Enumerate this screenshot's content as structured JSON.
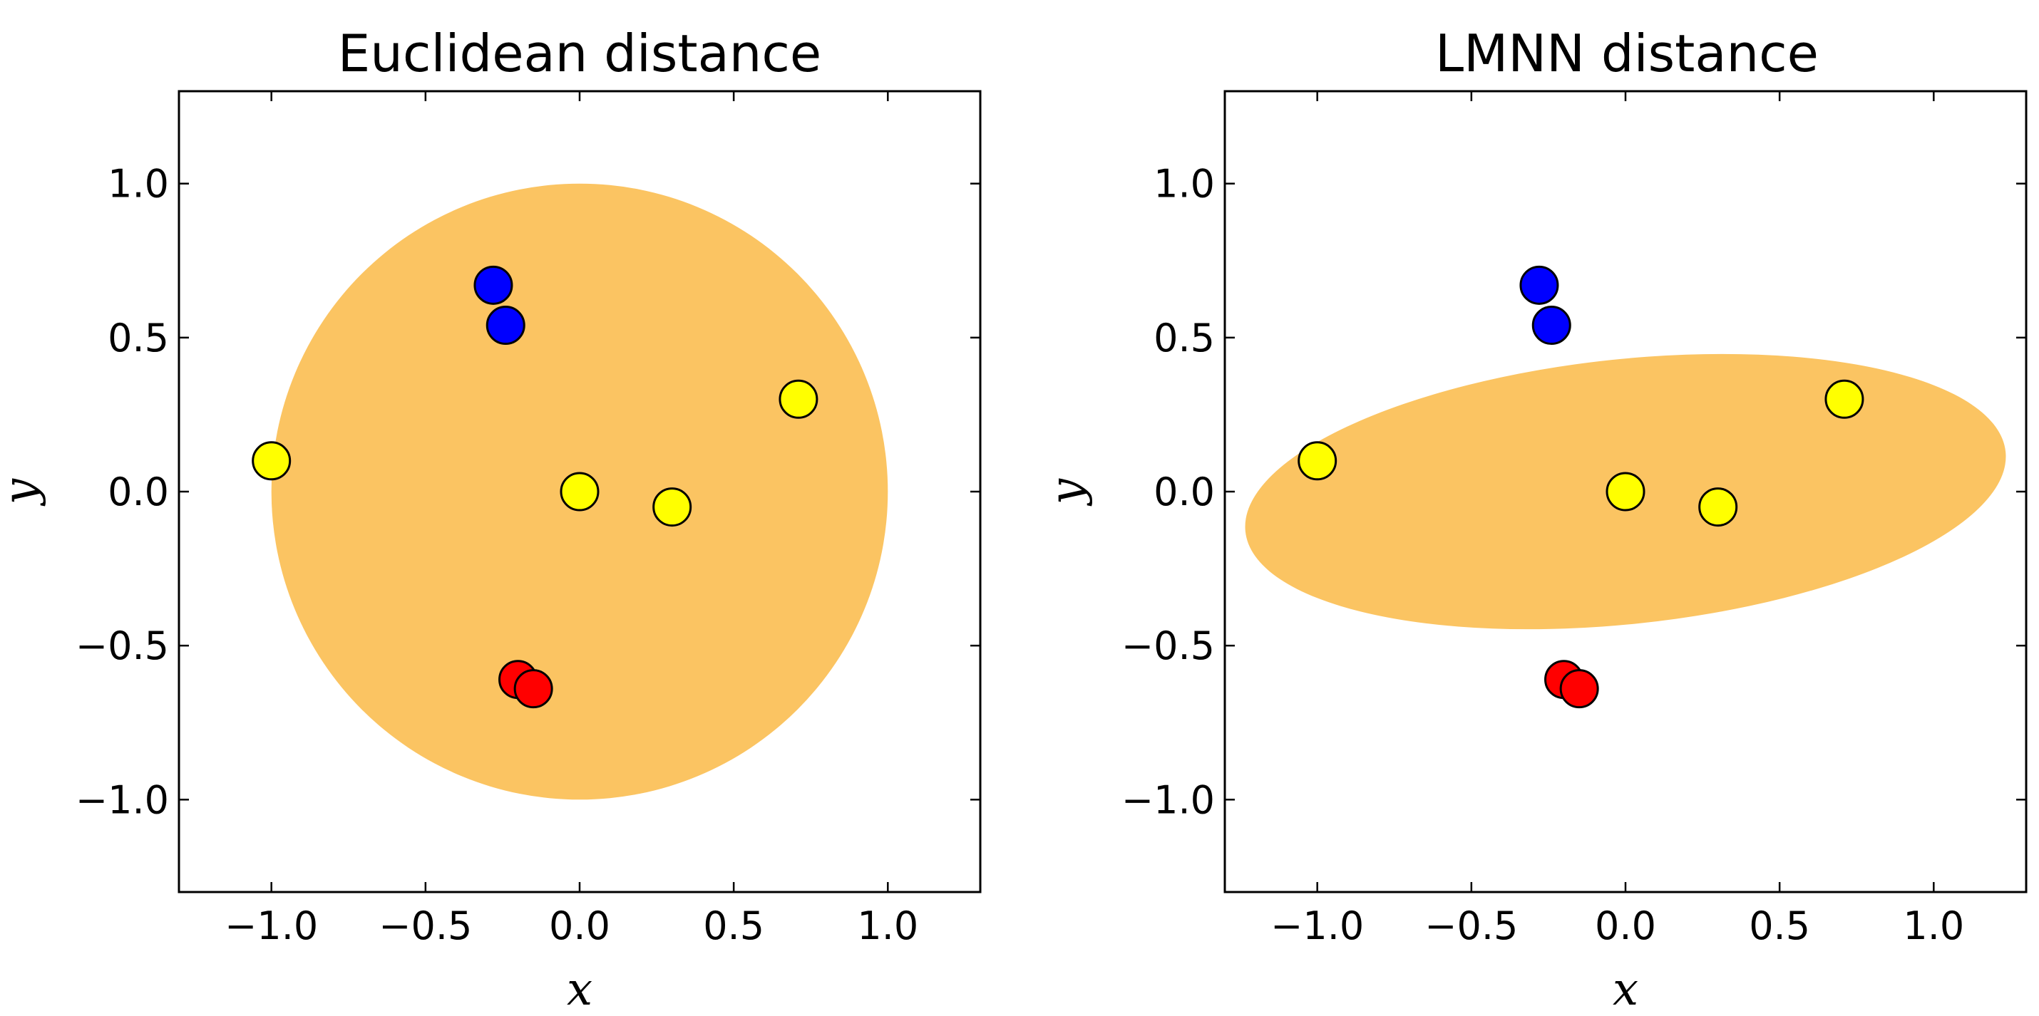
{
  "chart_data": [
    {
      "type": "scatter",
      "title": "Euclidean distance",
      "xlabel": "x",
      "ylabel": "y",
      "xlim": [
        -1.3,
        1.3
      ],
      "ylim": [
        -1.3,
        1.3
      ],
      "xticks": [
        "−1.0",
        "−0.5",
        "0.0",
        "0.5",
        "1.0"
      ],
      "yticks": [
        "1.0",
        "0.5",
        "0.0",
        "−0.5",
        "−1.0"
      ],
      "xtick_values": [
        -1.0,
        -0.5,
        0.0,
        0.5,
        1.0
      ],
      "ytick_values": [
        1.0,
        0.5,
        0.0,
        -0.5,
        -1.0
      ],
      "grid": false,
      "region": {
        "shape": "ellipse",
        "color": "#fbc462",
        "center": [
          0.0,
          0.0
        ],
        "radii": [
          1.0,
          1.0
        ],
        "rotation_deg": 0
      },
      "points": [
        {
          "x": -0.28,
          "y": 0.67,
          "color": "#0000ff"
        },
        {
          "x": -0.24,
          "y": 0.54,
          "color": "#0000ff"
        },
        {
          "x": -1.0,
          "y": 0.1,
          "color": "#ffff00"
        },
        {
          "x": 0.0,
          "y": 0.0,
          "color": "#ffff00"
        },
        {
          "x": 0.3,
          "y": -0.05,
          "color": "#ffff00"
        },
        {
          "x": 0.71,
          "y": 0.3,
          "color": "#ffff00"
        },
        {
          "x": -0.2,
          "y": -0.61,
          "color": "#ff0000"
        },
        {
          "x": -0.15,
          "y": -0.64,
          "color": "#ff0000"
        }
      ]
    },
    {
      "type": "scatter",
      "title": "LMNN distance",
      "xlabel": "x",
      "ylabel": "y",
      "xlim": [
        -1.3,
        1.3
      ],
      "ylim": [
        -1.3,
        1.3
      ],
      "xticks": [
        "−1.0",
        "−0.5",
        "0.0",
        "0.5",
        "1.0"
      ],
      "yticks": [
        "1.0",
        "0.5",
        "0.0",
        "−0.5",
        "−1.0"
      ],
      "xtick_values": [
        -1.0,
        -0.5,
        0.0,
        0.5,
        1.0
      ],
      "ytick_values": [
        1.0,
        0.5,
        0.0,
        -0.5,
        -1.0
      ],
      "grid": false,
      "region": {
        "shape": "ellipse",
        "color": "#fbc462",
        "center": [
          0.0,
          0.0
        ],
        "radii": [
          1.24,
          0.43
        ],
        "rotation_deg": 6
      },
      "points": [
        {
          "x": -0.28,
          "y": 0.67,
          "color": "#0000ff"
        },
        {
          "x": -0.24,
          "y": 0.54,
          "color": "#0000ff"
        },
        {
          "x": -1.0,
          "y": 0.1,
          "color": "#ffff00"
        },
        {
          "x": 0.0,
          "y": 0.0,
          "color": "#ffff00"
        },
        {
          "x": 0.3,
          "y": -0.05,
          "color": "#ffff00"
        },
        {
          "x": 0.71,
          "y": 0.3,
          "color": "#ffff00"
        },
        {
          "x": -0.2,
          "y": -0.61,
          "color": "#ff0000"
        },
        {
          "x": -0.15,
          "y": -0.64,
          "color": "#ff0000"
        }
      ]
    }
  ]
}
